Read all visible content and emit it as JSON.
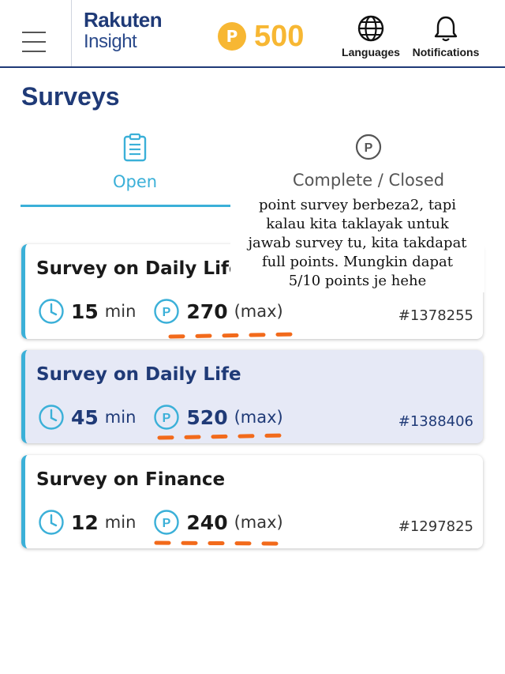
{
  "header": {
    "logo_top": "Rakuten",
    "logo_bottom": "Insight",
    "points_symbol": "P",
    "points_balance": "500",
    "languages_label": "Languages",
    "notifications_label": "Notifications"
  },
  "page": {
    "title": "Surveys"
  },
  "tabs": [
    {
      "label": "Open",
      "active": true,
      "icon": "clipboard-icon"
    },
    {
      "label": "Complete / Closed",
      "active": false,
      "icon": "points-circle-icon"
    }
  ],
  "surveys": [
    {
      "title": "Survey on Daily Life",
      "duration": "15",
      "duration_unit": "min",
      "points": "270",
      "points_suffix": "(max)",
      "id": "#1378255",
      "highlighted": false
    },
    {
      "title": "Survey on Daily Life",
      "duration": "45",
      "duration_unit": "min",
      "points": "520",
      "points_suffix": "(max)",
      "id": "#1388406",
      "highlighted": true
    },
    {
      "title": "Survey on Finance",
      "duration": "12",
      "duration_unit": "min",
      "points": "240",
      "points_suffix": "(max)",
      "id": "#1297825",
      "highlighted": false
    }
  ],
  "annotation": {
    "lines": [
      "point survey berbeza2, tapi",
      "kalau kita taklayak untuk",
      "jawab survey tu, kita takdapat",
      "full points. Mungkin dapat",
      "5/10 points je hehe"
    ]
  },
  "colors": {
    "brand_navy": "#1f3a77",
    "accent_cyan": "#3bb0d8",
    "points_gold": "#f7b733",
    "annotation_orange": "#f26a1b",
    "highlight_card": "#e6e9f6"
  }
}
